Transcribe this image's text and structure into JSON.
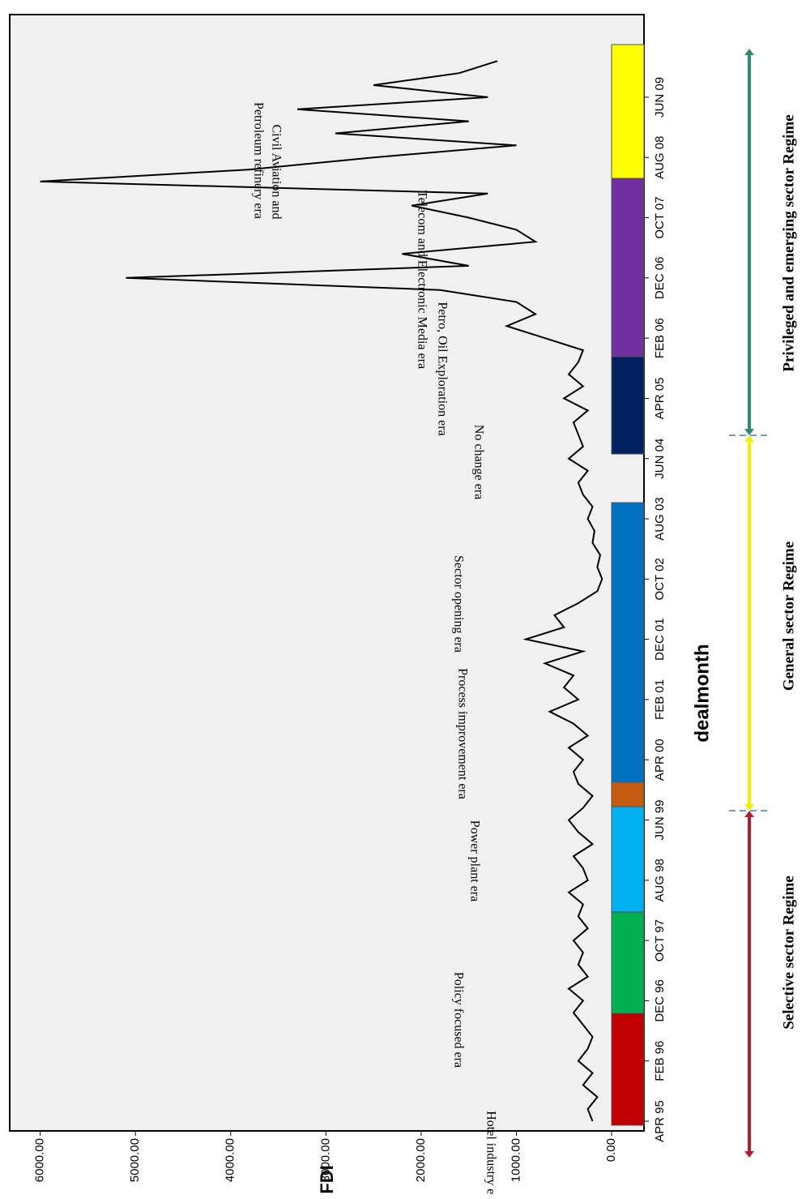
{
  "chart_data": {
    "type": "line",
    "x_label": "dealmonth",
    "y_label": "FDI",
    "categories": [
      "APR 95",
      null,
      null,
      null,
      null,
      "FEB 96",
      null,
      null,
      null,
      null,
      "DEC 96",
      null,
      null,
      null,
      null,
      "OCT 97",
      null,
      null,
      null,
      null,
      "AUG 98",
      null,
      null,
      null,
      null,
      "JUN 99",
      null,
      null,
      null,
      null,
      "APR 00",
      null,
      null,
      null,
      null,
      "FEB 01",
      null,
      null,
      null,
      null,
      "DEC 01",
      null,
      null,
      null,
      null,
      "OCT 02",
      null,
      null,
      null,
      null,
      "AUG 03",
      null,
      null,
      null,
      null,
      "JUN 04",
      null,
      null,
      null,
      null,
      "APR 05",
      null,
      null,
      null,
      null,
      "FEB 06",
      null,
      null,
      null,
      null,
      "DEC 06",
      null,
      null,
      null,
      null,
      "OCT 07",
      null,
      null,
      null,
      null,
      "AUG 08",
      null,
      null,
      null,
      null,
      "JUN 09",
      null,
      null,
      null
    ],
    "values": [
      200,
      250,
      150,
      300,
      200,
      350,
      250,
      200,
      300,
      400,
      300,
      450,
      250,
      350,
      300,
      400,
      250,
      350,
      300,
      450,
      250,
      300,
      400,
      200,
      350,
      450,
      300,
      200,
      350,
      400,
      300,
      450,
      250,
      400,
      650,
      350,
      500,
      400,
      700,
      300,
      900,
      500,
      600,
      350,
      150,
      100,
      150,
      120,
      200,
      180,
      250,
      200,
      300,
      350,
      250,
      450,
      300,
      350,
      400,
      250,
      500,
      300,
      450,
      350,
      300,
      700,
      1100,
      800,
      1000,
      1800,
      5100,
      1500,
      2200,
      800,
      1000,
      1500,
      2100,
      1300,
      6000,
      3800,
      2500,
      1000,
      2900,
      1500,
      3300,
      1300,
      2500,
      1600,
      1200
    ],
    "color": "#000000",
    "ylim": [
      -340,
      6320
    ],
    "yticks": [
      {
        "value": 0,
        "label": "0.00"
      },
      {
        "value": 1000,
        "label": "1000.00"
      },
      {
        "value": 2000,
        "label": "2000.00"
      },
      {
        "value": 3000,
        "label": "3000.00"
      },
      {
        "value": 4000,
        "label": "4000.00"
      },
      {
        "value": 5000,
        "label": "5000.00"
      },
      {
        "value": 6000,
        "label": "6000.00"
      }
    ],
    "annotations": [
      "Hotel industry era",
      "Policy focused era",
      "Power plant era",
      "Process improvement  era",
      "Sector opening era",
      "No change era",
      "Petro, Oil Exploration  era",
      "Telecom  and Electronic  Media  era",
      "Civil  Aviation and",
      "Petroleum  refinery  era"
    ],
    "regimes": [
      {
        "label": "Selective sector Regime",
        "color": "#b22030"
      },
      {
        "label": "General sector Regime",
        "color": "#f0f000"
      },
      {
        "label": "Privileged and emerging sector Regime",
        "color": "#2e8b70"
      }
    ]
  }
}
